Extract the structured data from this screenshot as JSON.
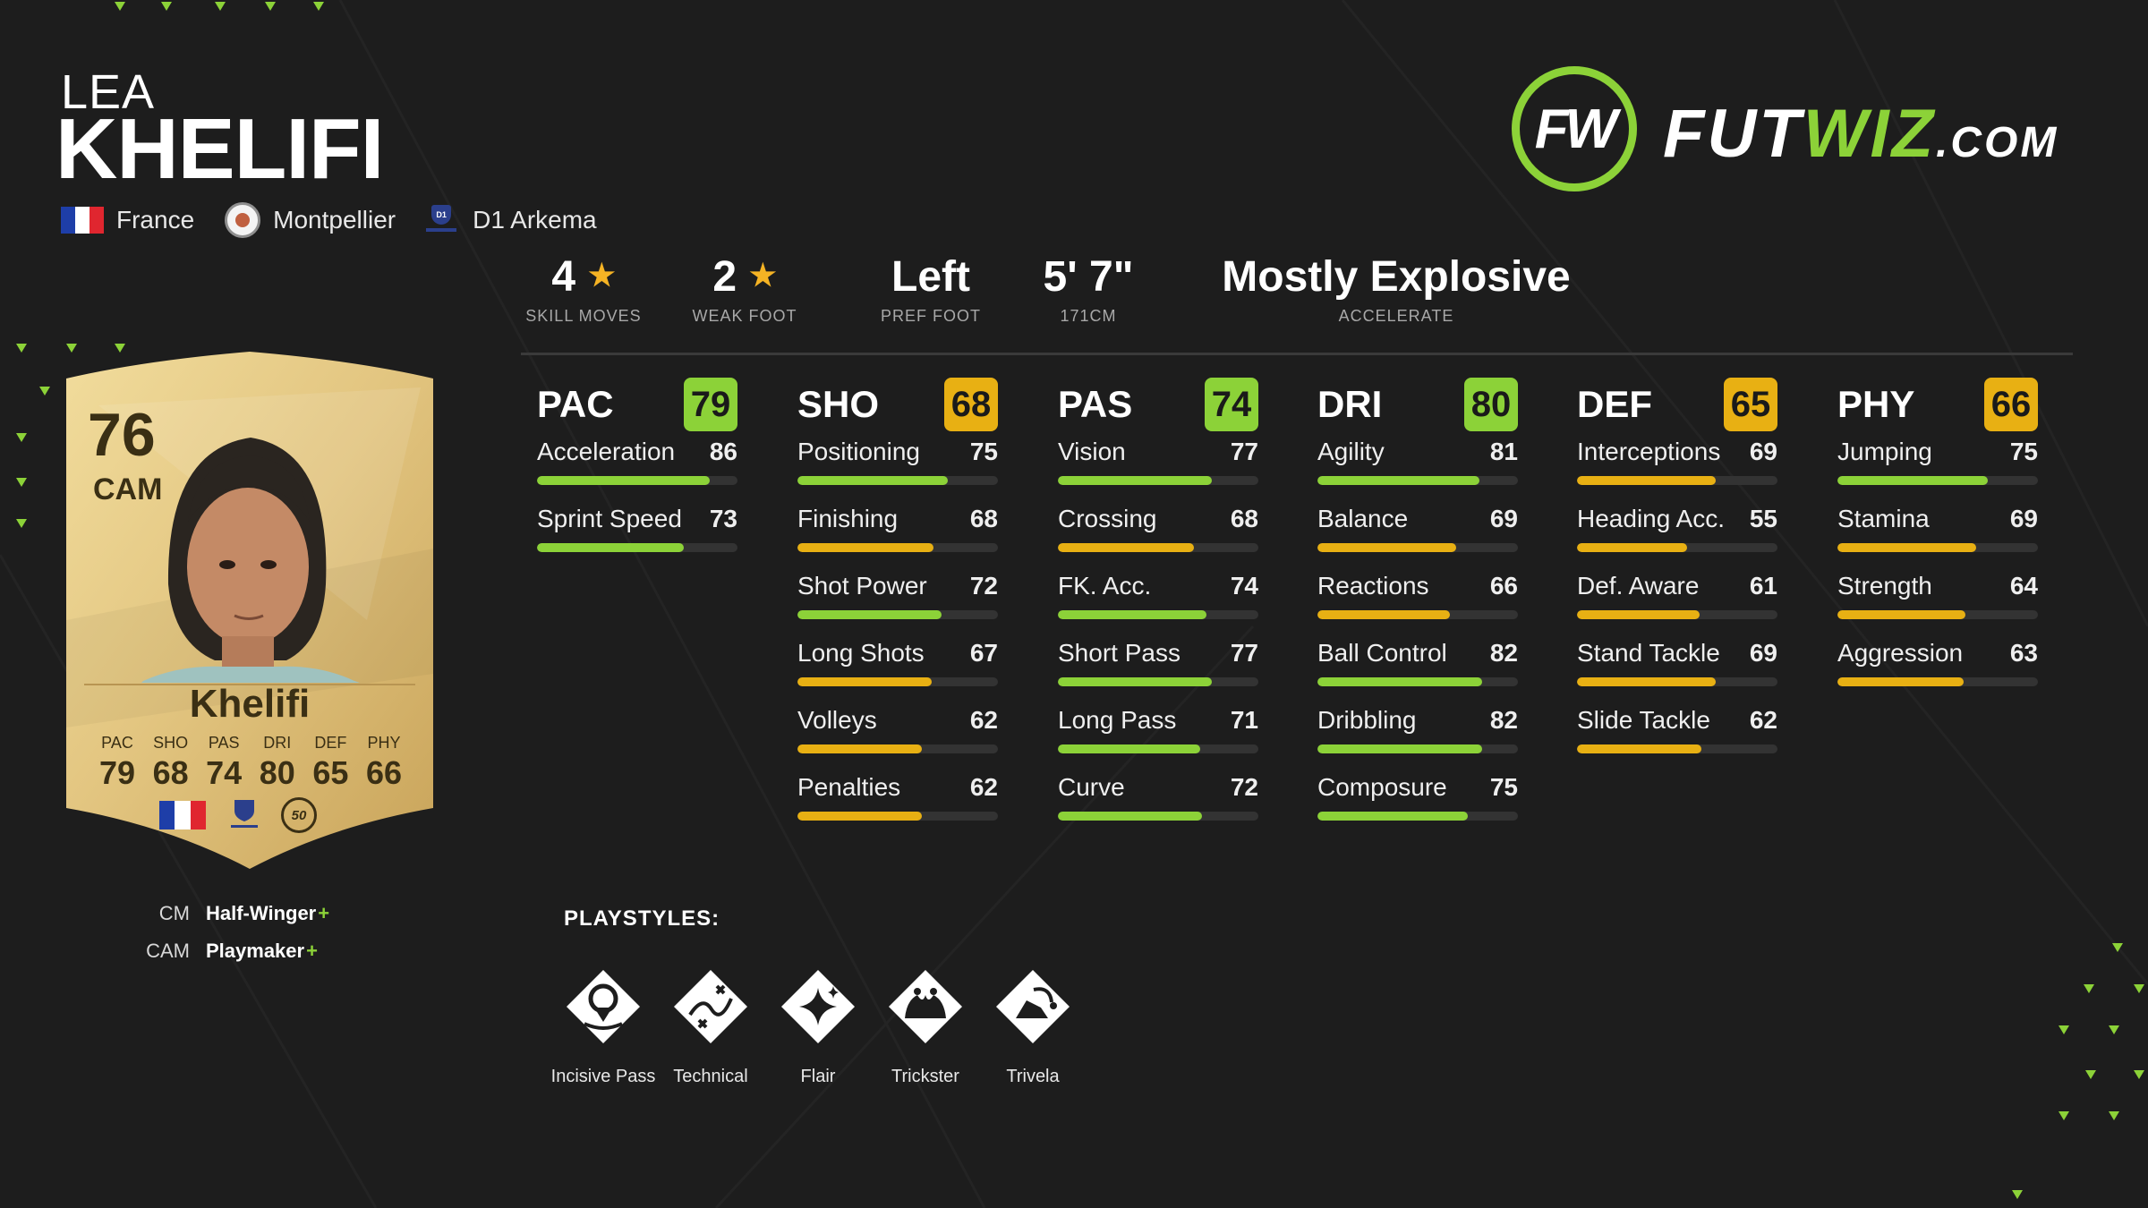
{
  "player": {
    "first_name": "LEA",
    "last_name": "KHELIFI",
    "nation": "France",
    "club": "Montpellier",
    "league": "D1 Arkema"
  },
  "logo": {
    "fut": "FUT",
    "wiz": "WIZ",
    "dot": ".COM",
    "mark": "FW"
  },
  "info": {
    "skill_moves": {
      "value": "4",
      "label": "SKILL MOVES"
    },
    "weak_foot": {
      "value": "2",
      "label": "WEAK FOOT"
    },
    "pref_foot": {
      "value": "Left",
      "label": "PREF FOOT"
    },
    "height": {
      "value": "5' 7\"",
      "label": "171CM"
    },
    "accelerate": {
      "value": "Mostly Explosive",
      "label": "ACCELERATE"
    }
  },
  "card": {
    "rating": "76",
    "position": "CAM",
    "name": "Khelifi",
    "stats": [
      {
        "label": "PAC",
        "value": "79"
      },
      {
        "label": "SHO",
        "value": "68"
      },
      {
        "label": "PAS",
        "value": "74"
      },
      {
        "label": "DRI",
        "value": "80"
      },
      {
        "label": "DEF",
        "value": "65"
      },
      {
        "label": "PHY",
        "value": "66"
      }
    ],
    "league_badge": "D1",
    "club_badge": "50"
  },
  "colors": {
    "green": "#8cd238",
    "yellow": "#e8b013",
    "star": "#f5b324",
    "background": "#1d1d1d"
  },
  "attributes": [
    {
      "name": "PAC",
      "value": "79",
      "tier": "green",
      "stats": [
        {
          "name": "Acceleration",
          "value": "86"
        },
        {
          "name": "Sprint Speed",
          "value": "73"
        }
      ]
    },
    {
      "name": "SHO",
      "value": "68",
      "tier": "yellow",
      "stats": [
        {
          "name": "Positioning",
          "value": "75"
        },
        {
          "name": "Finishing",
          "value": "68"
        },
        {
          "name": "Shot Power",
          "value": "72"
        },
        {
          "name": "Long Shots",
          "value": "67"
        },
        {
          "name": "Volleys",
          "value": "62"
        },
        {
          "name": "Penalties",
          "value": "62"
        }
      ]
    },
    {
      "name": "PAS",
      "value": "74",
      "tier": "green",
      "stats": [
        {
          "name": "Vision",
          "value": "77"
        },
        {
          "name": "Crossing",
          "value": "68"
        },
        {
          "name": "FK. Acc.",
          "value": "74"
        },
        {
          "name": "Short Pass",
          "value": "77"
        },
        {
          "name": "Long Pass",
          "value": "71"
        },
        {
          "name": "Curve",
          "value": "72"
        }
      ]
    },
    {
      "name": "DRI",
      "value": "80",
      "tier": "green",
      "stats": [
        {
          "name": "Agility",
          "value": "81"
        },
        {
          "name": "Balance",
          "value": "69"
        },
        {
          "name": "Reactions",
          "value": "66"
        },
        {
          "name": "Ball Control",
          "value": "82"
        },
        {
          "name": "Dribbling",
          "value": "82"
        },
        {
          "name": "Composure",
          "value": "75"
        }
      ]
    },
    {
      "name": "DEF",
      "value": "65",
      "tier": "yellow",
      "stats": [
        {
          "name": "Interceptions",
          "value": "69"
        },
        {
          "name": "Heading Acc.",
          "value": "55"
        },
        {
          "name": "Def. Aware",
          "value": "61"
        },
        {
          "name": "Stand Tackle",
          "value": "69"
        },
        {
          "name": "Slide Tackle",
          "value": "62"
        }
      ]
    },
    {
      "name": "PHY",
      "value": "66",
      "tier": "yellow",
      "stats": [
        {
          "name": "Jumping",
          "value": "75"
        },
        {
          "name": "Stamina",
          "value": "69"
        },
        {
          "name": "Strength",
          "value": "64"
        },
        {
          "name": "Aggression",
          "value": "63"
        }
      ]
    }
  ],
  "roles": [
    {
      "position": "CM",
      "name": "Half-Winger",
      "plus": "+"
    },
    {
      "position": "CAM",
      "name": "Playmaker",
      "plus": "+"
    }
  ],
  "playstyles": {
    "title": "PLAYSTYLES:",
    "items": [
      {
        "name": "Incisive Pass",
        "icon": "location-pin-icon"
      },
      {
        "name": "Technical",
        "icon": "dribble-path-icon"
      },
      {
        "name": "Flair",
        "icon": "sparkle-icon"
      },
      {
        "name": "Trickster",
        "icon": "jester-hat-icon"
      },
      {
        "name": "Trivela",
        "icon": "boot-curve-icon"
      }
    ]
  }
}
